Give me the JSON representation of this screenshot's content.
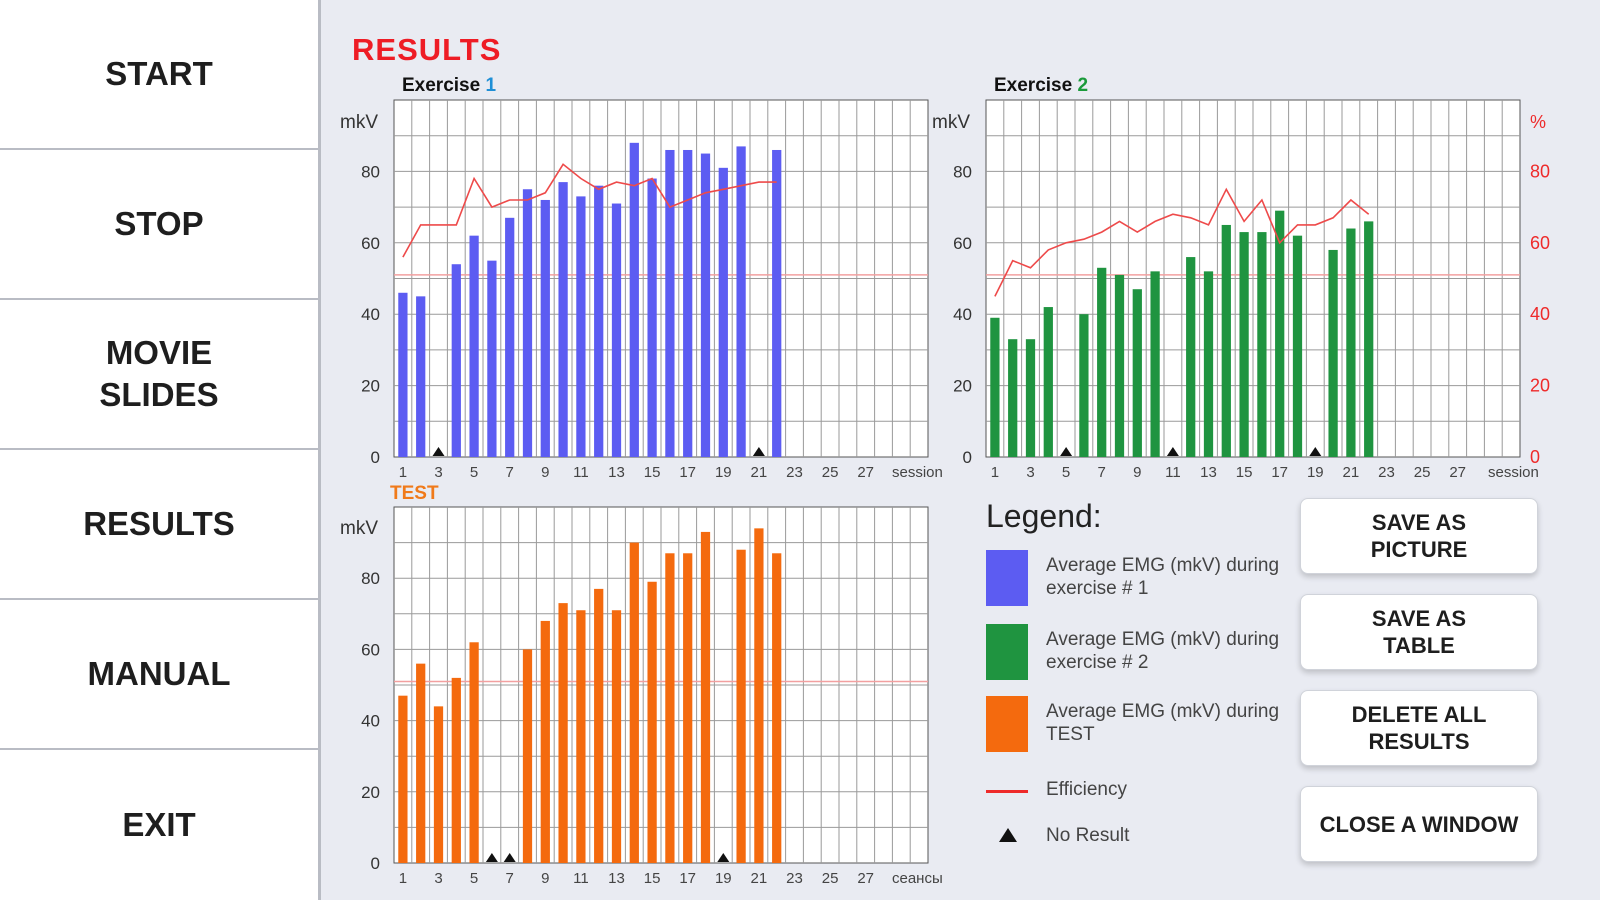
{
  "sidebar": {
    "items": [
      {
        "label": "START"
      },
      {
        "label": "STOP"
      },
      {
        "label": "MOVIE\nSLIDES"
      },
      {
        "label": "RESULTS"
      },
      {
        "label": "MANUAL"
      },
      {
        "label": "EXIT"
      }
    ]
  },
  "main": {
    "title": "RESULTS"
  },
  "chart_data": [
    {
      "type": "bar",
      "title_prefix": "Exercise ",
      "title_number": "1",
      "title_number_color": "#1f8fd6",
      "ylabel": "mkV",
      "ylim": [
        0,
        100
      ],
      "yticks": [
        0,
        20,
        40,
        60,
        80
      ],
      "x_ticks": [
        "1",
        "3",
        "5",
        "7",
        "9",
        "11",
        "13",
        "15",
        "17",
        "19",
        "21",
        "23",
        "25",
        "27"
      ],
      "x_axis_label": "session",
      "bar_color": "#5c5cf2",
      "threshold": 51,
      "sessions": [
        1,
        2,
        3,
        4,
        5,
        6,
        7,
        8,
        9,
        10,
        11,
        12,
        13,
        14,
        15,
        16,
        17,
        18,
        19,
        20,
        21,
        22,
        23,
        24,
        25,
        26,
        27,
        28,
        29,
        30
      ],
      "values": [
        46,
        45,
        null,
        54,
        62,
        55,
        67,
        75,
        72,
        77,
        73,
        76,
        71,
        88,
        78,
        86,
        86,
        85,
        81,
        87,
        null,
        86,
        null,
        null,
        null,
        null,
        null,
        null,
        null,
        null
      ],
      "no_result_sessions": [
        3,
        21
      ],
      "efficiency": {
        "axis": "left",
        "sessions": [
          1,
          2,
          3,
          4,
          5,
          6,
          7,
          8,
          9,
          10,
          11,
          12,
          13,
          14,
          15,
          16,
          17,
          18,
          19,
          20,
          21,
          22
        ],
        "values": [
          56,
          65,
          65,
          65,
          78,
          70,
          72,
          72,
          74,
          82,
          78,
          75,
          77,
          76,
          78,
          70,
          72,
          74,
          75,
          76,
          77,
          77
        ]
      }
    },
    {
      "type": "bar",
      "title_prefix": "Exercise ",
      "title_number": "2",
      "title_number_color": "#1a9a3a",
      "ylabel": "mkV",
      "y2label": "%",
      "ylim": [
        0,
        100
      ],
      "yticks": [
        0,
        20,
        40,
        60,
        80
      ],
      "y2ticks": [
        0,
        20,
        40,
        60,
        80
      ],
      "x_ticks": [
        "1",
        "3",
        "5",
        "7",
        "9",
        "11",
        "13",
        "15",
        "17",
        "19",
        "21",
        "23",
        "25",
        "27"
      ],
      "x_axis_label": "session",
      "bar_color": "#1f9440",
      "threshold": 51,
      "sessions": [
        1,
        2,
        3,
        4,
        5,
        6,
        7,
        8,
        9,
        10,
        11,
        12,
        13,
        14,
        15,
        16,
        17,
        18,
        19,
        20,
        21,
        22,
        23,
        24,
        25,
        26,
        27,
        28,
        29,
        30
      ],
      "values": [
        39,
        33,
        33,
        42,
        null,
        40,
        53,
        51,
        47,
        52,
        null,
        56,
        52,
        65,
        63,
        63,
        69,
        62,
        null,
        58,
        64,
        66,
        null,
        null,
        null,
        null,
        null,
        null,
        null,
        null
      ],
      "no_result_sessions": [
        5,
        11,
        19
      ],
      "efficiency": {
        "axis": "right",
        "sessions": [
          1,
          2,
          3,
          4,
          5,
          6,
          7,
          8,
          9,
          10,
          11,
          12,
          13,
          14,
          15,
          16,
          17,
          18,
          19,
          20,
          21,
          22
        ],
        "values": [
          45,
          55,
          53,
          58,
          60,
          61,
          63,
          66,
          63,
          66,
          68,
          67,
          65,
          75,
          66,
          72,
          60,
          65,
          65,
          67,
          72,
          68
        ]
      }
    },
    {
      "type": "bar",
      "title_prefix": "TEST",
      "title_color": "#f07a1a",
      "ylabel": "mkV",
      "ylim": [
        0,
        100
      ],
      "yticks": [
        0,
        20,
        40,
        60,
        80
      ],
      "x_ticks": [
        "1",
        "3",
        "5",
        "7",
        "9",
        "11",
        "13",
        "15",
        "17",
        "19",
        "21",
        "23",
        "25",
        "27"
      ],
      "x_axis_label": "сеансы",
      "bar_color": "#f46a0e",
      "threshold": 51,
      "sessions": [
        1,
        2,
        3,
        4,
        5,
        6,
        7,
        8,
        9,
        10,
        11,
        12,
        13,
        14,
        15,
        16,
        17,
        18,
        19,
        20,
        21,
        22,
        23,
        24,
        25,
        26,
        27,
        28,
        29,
        30
      ],
      "values": [
        47,
        56,
        44,
        52,
        62,
        null,
        null,
        60,
        68,
        73,
        71,
        77,
        71,
        90,
        79,
        87,
        87,
        93,
        null,
        88,
        94,
        87,
        null,
        null,
        null,
        null,
        null,
        null,
        null,
        null
      ],
      "no_result_sessions": [
        6,
        7,
        19
      ]
    }
  ],
  "legend": {
    "title": "Legend:",
    "items": [
      {
        "type": "swatch",
        "color": "#5c5cf2",
        "text": "Average EMG (mkV) during exercise # 1"
      },
      {
        "type": "swatch",
        "color": "#1f9440",
        "text": "Average EMG (mkV) during exercise # 2"
      },
      {
        "type": "swatch",
        "color": "#f46a0e",
        "text": "Average EMG (mkV) during TEST"
      },
      {
        "type": "line",
        "color": "#ee2a2a",
        "text": "Efficiency"
      },
      {
        "type": "triangle",
        "color": "#111111",
        "text": "No Result"
      }
    ]
  },
  "actions": {
    "buttons": [
      {
        "label": "SAVE AS\nPICTURE"
      },
      {
        "label": "SAVE AS\nTABLE"
      },
      {
        "label": "DELETE ALL\nRESULTS"
      },
      {
        "label": "CLOSE A WINDOW"
      }
    ]
  }
}
